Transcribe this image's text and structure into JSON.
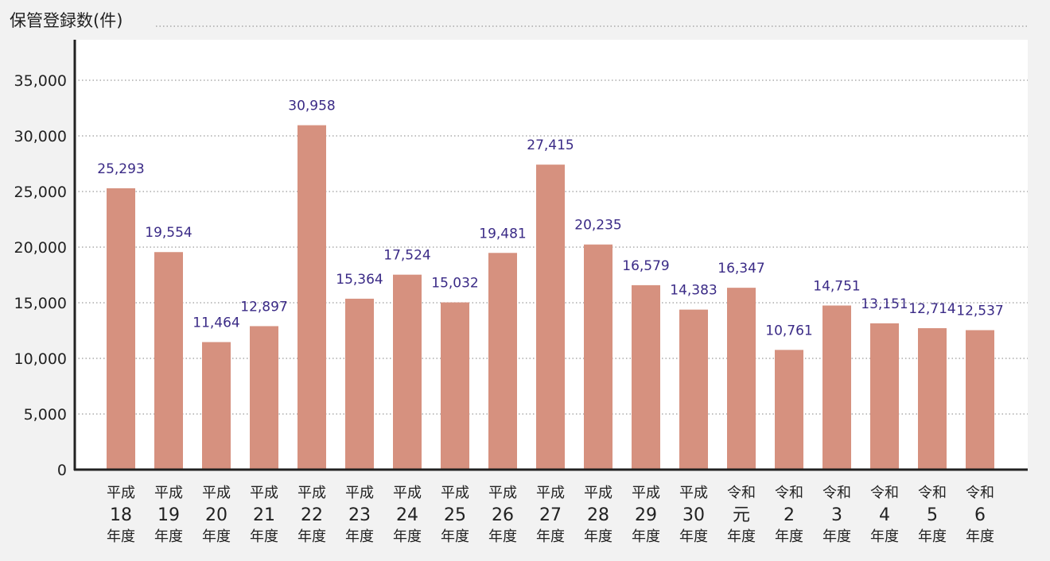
{
  "colors": {
    "background": "#f2f2f2",
    "plot_background": "#ffffff",
    "bar": "#d6917f",
    "data_label": "#3a2a86",
    "gridline": "#9a9a9a",
    "axis": "#222222"
  },
  "chart_data": {
    "type": "bar",
    "ylabel": "保管登録数(件)",
    "ylim": [
      0,
      37500
    ],
    "yticks": [
      "0",
      "5,000",
      "10,000",
      "15,000",
      "20,000",
      "25,000",
      "30,000",
      "35,000"
    ],
    "grid": "horizontal dotted",
    "categories": [
      {
        "era": "平成",
        "num": "18",
        "suffix": "年度"
      },
      {
        "era": "平成",
        "num": "19",
        "suffix": "年度"
      },
      {
        "era": "平成",
        "num": "20",
        "suffix": "年度"
      },
      {
        "era": "平成",
        "num": "21",
        "suffix": "年度"
      },
      {
        "era": "平成",
        "num": "22",
        "suffix": "年度"
      },
      {
        "era": "平成",
        "num": "23",
        "suffix": "年度"
      },
      {
        "era": "平成",
        "num": "24",
        "suffix": "年度"
      },
      {
        "era": "平成",
        "num": "25",
        "suffix": "年度"
      },
      {
        "era": "平成",
        "num": "26",
        "suffix": "年度"
      },
      {
        "era": "平成",
        "num": "27",
        "suffix": "年度"
      },
      {
        "era": "平成",
        "num": "28",
        "suffix": "年度"
      },
      {
        "era": "平成",
        "num": "29",
        "suffix": "年度"
      },
      {
        "era": "平成",
        "num": "30",
        "suffix": "年度"
      },
      {
        "era": "令和",
        "num": "元",
        "suffix": "年度"
      },
      {
        "era": "令和",
        "num": "2",
        "suffix": "年度"
      },
      {
        "era": "令和",
        "num": "3",
        "suffix": "年度"
      },
      {
        "era": "令和",
        "num": "4",
        "suffix": "年度"
      },
      {
        "era": "令和",
        "num": "5",
        "suffix": "年度"
      },
      {
        "era": "令和",
        "num": "6",
        "suffix": "年度"
      }
    ],
    "values": [
      25293,
      19554,
      11464,
      12897,
      30958,
      15364,
      17524,
      15032,
      19481,
      27415,
      20235,
      16579,
      14383,
      16347,
      10761,
      14751,
      13151,
      12714,
      12537
    ],
    "value_labels": [
      "25,293",
      "19,554",
      "11,464",
      "12,897",
      "30,958",
      "15,364",
      "17,524",
      "15,032",
      "19,481",
      "27,415",
      "20,235",
      "16,579",
      "14,383",
      "16,347",
      "10,761",
      "14,751",
      "13,151",
      "12,714",
      "12,537"
    ]
  }
}
